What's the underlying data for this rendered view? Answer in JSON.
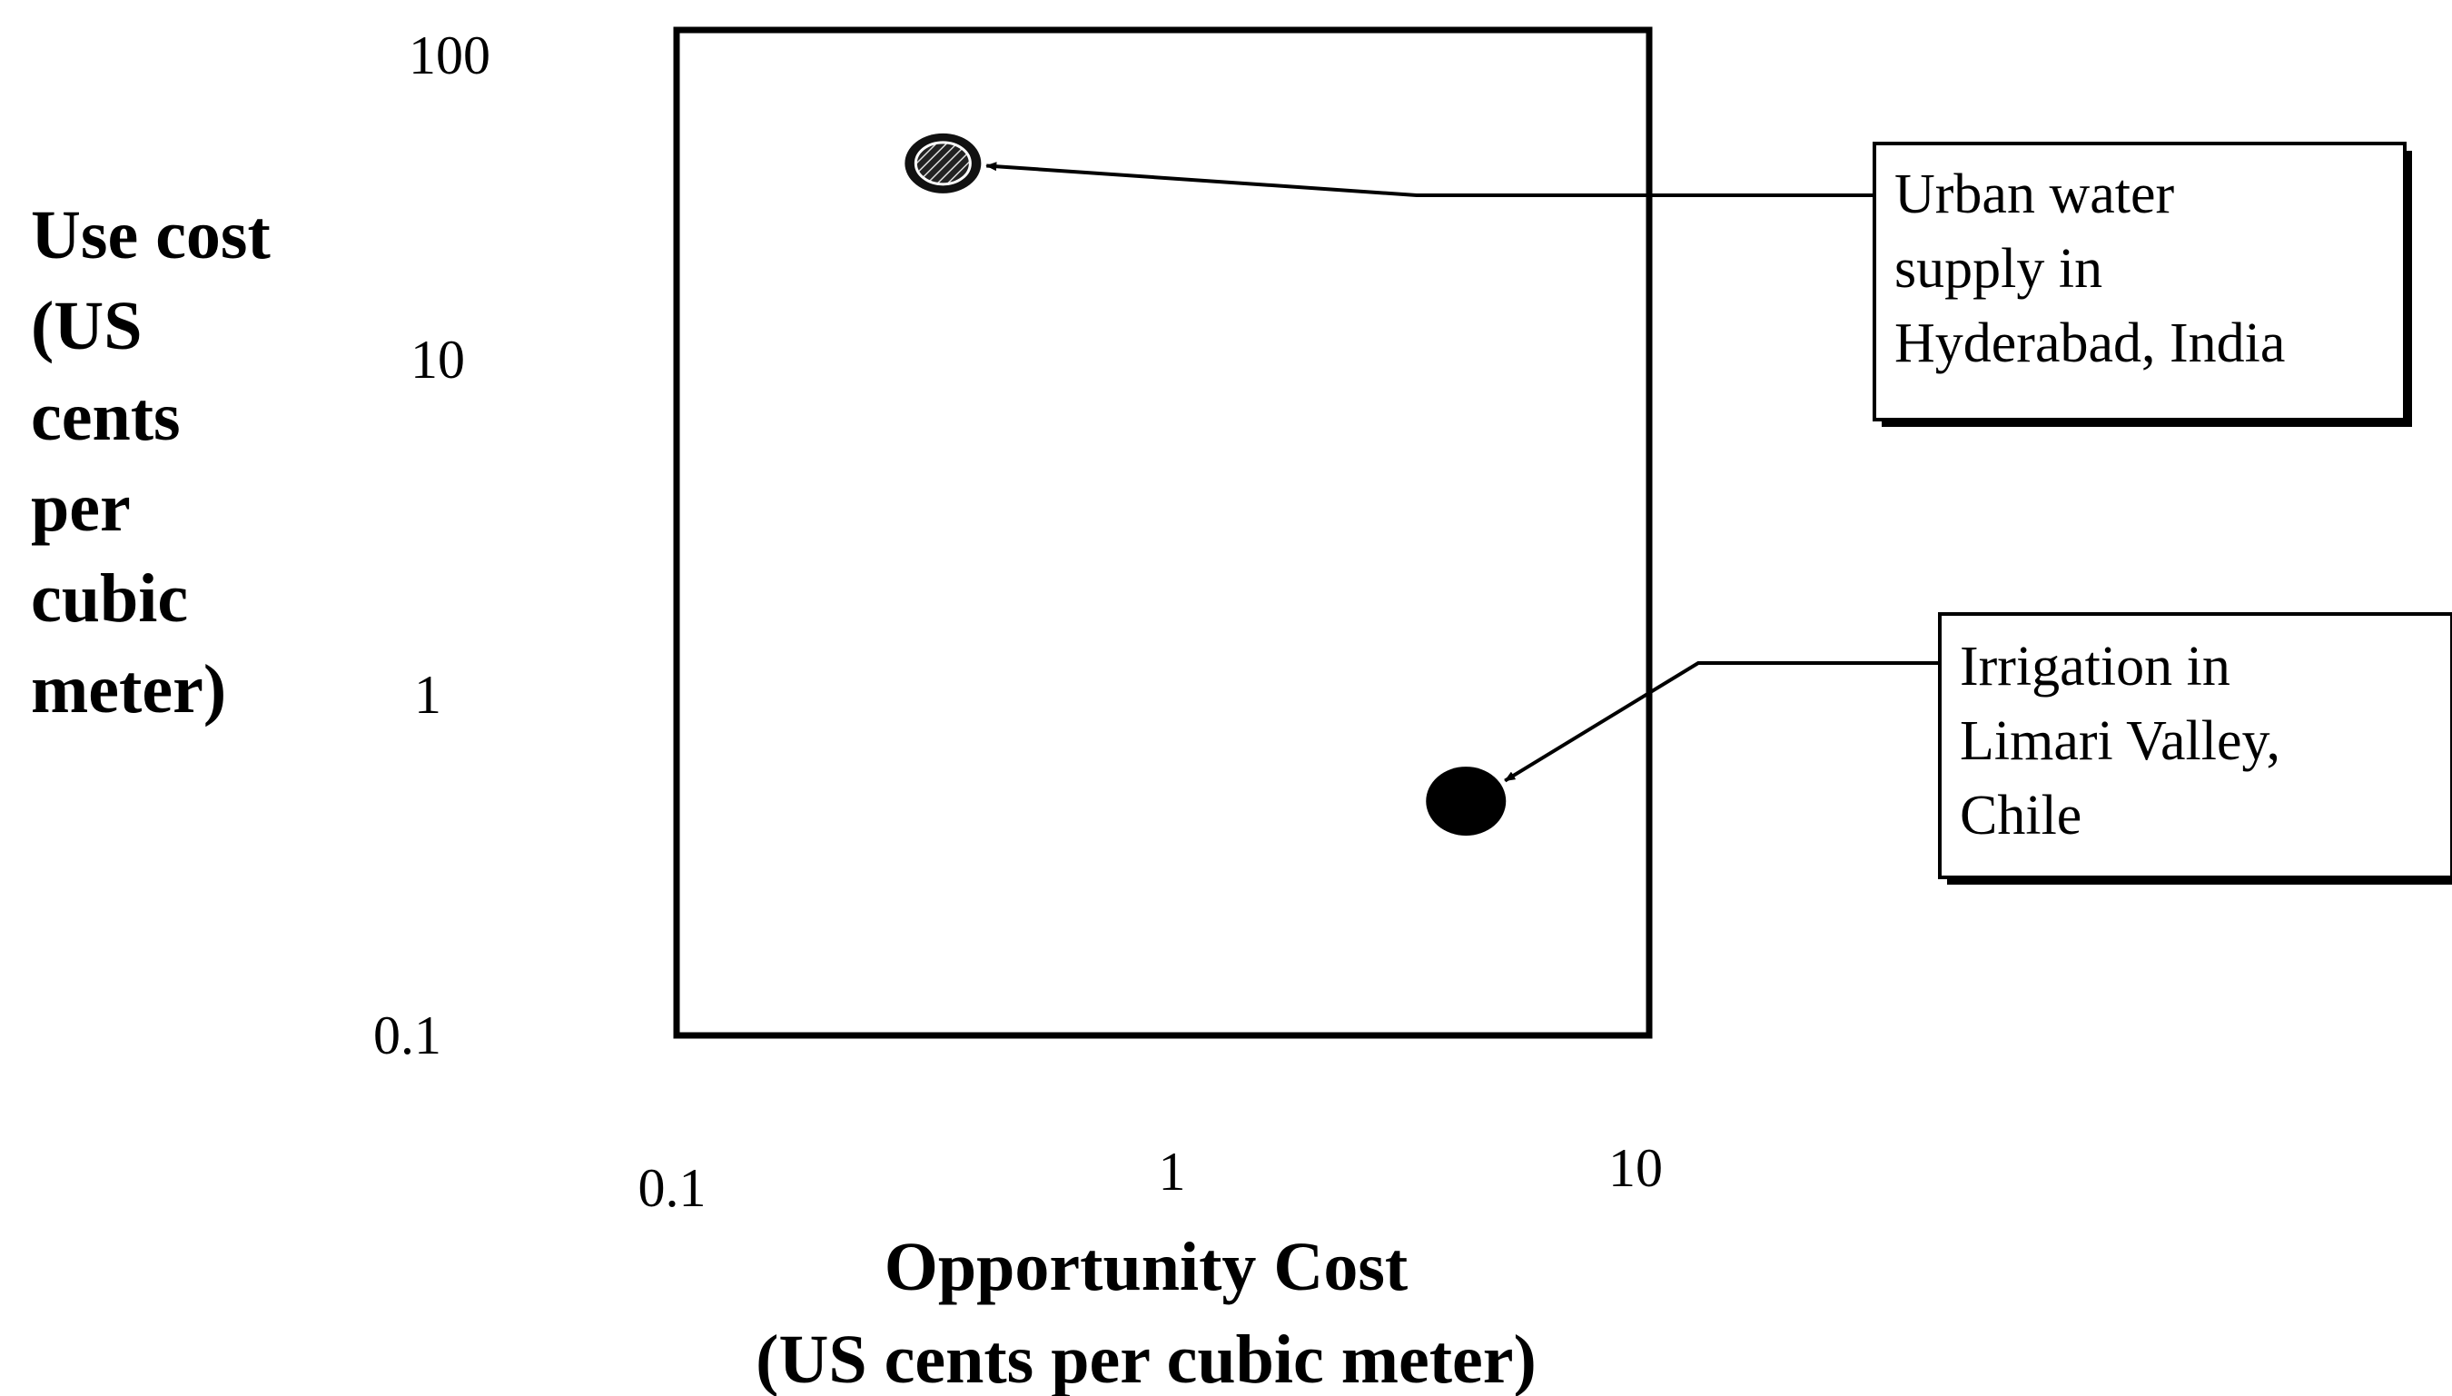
{
  "chart_data": {
    "type": "scatter",
    "title": "",
    "xlabel": "Opportunity Cost",
    "xlabel_units": "(US cents per cubic meter)",
    "ylabel_lines": [
      "Use cost",
      "(US",
      "cents",
      "per",
      "cubic",
      "meter)"
    ],
    "x_scale": "log",
    "y_scale": "log",
    "xlim": [
      0.1,
      10
    ],
    "ylim": [
      0.1,
      100
    ],
    "x_ticks": [
      {
        "value": 0.1,
        "label": "0.1"
      },
      {
        "value": 1,
        "label": "1"
      },
      {
        "value": 10,
        "label": "10"
      }
    ],
    "y_ticks": [
      {
        "value": 100,
        "label": "100"
      },
      {
        "value": 10,
        "label": "10"
      },
      {
        "value": 1,
        "label": "1"
      },
      {
        "value": 0.1,
        "label": "0.1"
      }
    ],
    "grid": false,
    "legend": "none",
    "points": [
      {
        "id": "urban",
        "x": 0.35,
        "y": 40,
        "style": "hatched",
        "label_lines": [
          "Urban water",
          "supply in",
          "Hyderabad, India"
        ]
      },
      {
        "id": "irrigation",
        "x": 4.2,
        "y": 0.5,
        "style": "solid",
        "label_lines": [
          "Irrigation in",
          "Limari Valley,",
          "Chile"
        ]
      }
    ]
  }
}
